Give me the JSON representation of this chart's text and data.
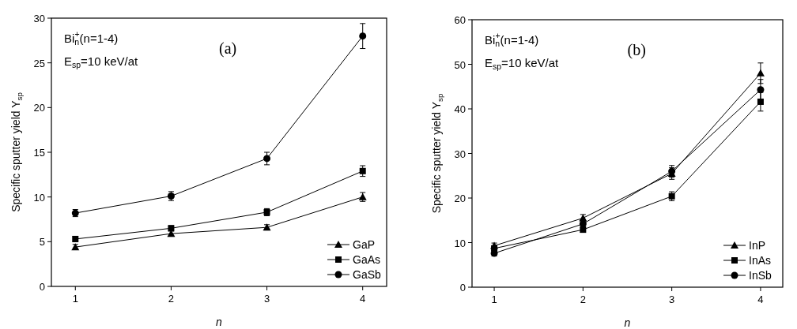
{
  "chart_data": [
    {
      "type": "line",
      "xlabel": "n",
      "ylabel": "Specific sputter yield Y$_{sp}$",
      "x": [
        1,
        2,
        3,
        4
      ],
      "xlim": [
        0.75,
        4.25
      ],
      "xticks": [
        1,
        2,
        3,
        4
      ],
      "ylim": [
        0,
        30
      ],
      "yticks": [
        0,
        5,
        10,
        15,
        20,
        25,
        30
      ],
      "legend": "bottom right",
      "grid": false,
      "line_style": "solid",
      "annotations": [
        "Bi$_{n}$$^{+}$(n=1-4)",
        "E$_{sp}$=10 keV/at",
        "(a)"
      ],
      "series": [
        {
          "name": "GaP",
          "color": "#000000",
          "marker": "triangle",
          "values": [
            4.4,
            5.9,
            6.6,
            10.0
          ],
          "errors": [
            0.3,
            0.3,
            0.3,
            0.5
          ]
        },
        {
          "name": "GaAs",
          "color": "#000000",
          "marker": "square",
          "values": [
            5.3,
            6.5,
            8.3,
            12.9
          ],
          "errors": [
            0.3,
            0.3,
            0.4,
            0.6
          ]
        },
        {
          "name": "GaSb",
          "color": "#000000",
          "marker": "circle",
          "values": [
            8.2,
            10.1,
            14.3,
            28.0
          ],
          "errors": [
            0.4,
            0.5,
            0.7,
            1.4
          ]
        }
      ]
    },
    {
      "type": "line",
      "xlabel": "n",
      "ylabel": "Specific sputter yield Y$_{sp}$",
      "x": [
        1,
        2,
        3,
        4
      ],
      "xlim": [
        0.75,
        4.25
      ],
      "xticks": [
        1,
        2,
        3,
        4
      ],
      "ylim": [
        0,
        60
      ],
      "yticks": [
        0,
        10,
        20,
        30,
        40,
        50,
        60
      ],
      "legend": "bottom right",
      "grid": false,
      "line_style": "solid",
      "annotations": [
        "Bi$_{n}$$^{+}$(n=1-4)",
        "E$_{sp}$=10 keV/at",
        "(b)"
      ],
      "series": [
        {
          "name": "InP",
          "color": "#000000",
          "marker": "triangle",
          "values": [
            9.3,
            15.5,
            25.5,
            48.0
          ],
          "errors": [
            0.6,
            0.8,
            1.3,
            2.3
          ]
        },
        {
          "name": "InAs",
          "color": "#000000",
          "marker": "square",
          "values": [
            8.7,
            12.9,
            20.4,
            41.6
          ],
          "errors": [
            0.6,
            0.6,
            1.0,
            2.1
          ]
        },
        {
          "name": "InSb",
          "color": "#000000",
          "marker": "circle",
          "values": [
            7.6,
            14.2,
            26.0,
            44.3
          ],
          "errors": [
            0.6,
            0.7,
            1.3,
            2.3
          ]
        }
      ]
    }
  ]
}
